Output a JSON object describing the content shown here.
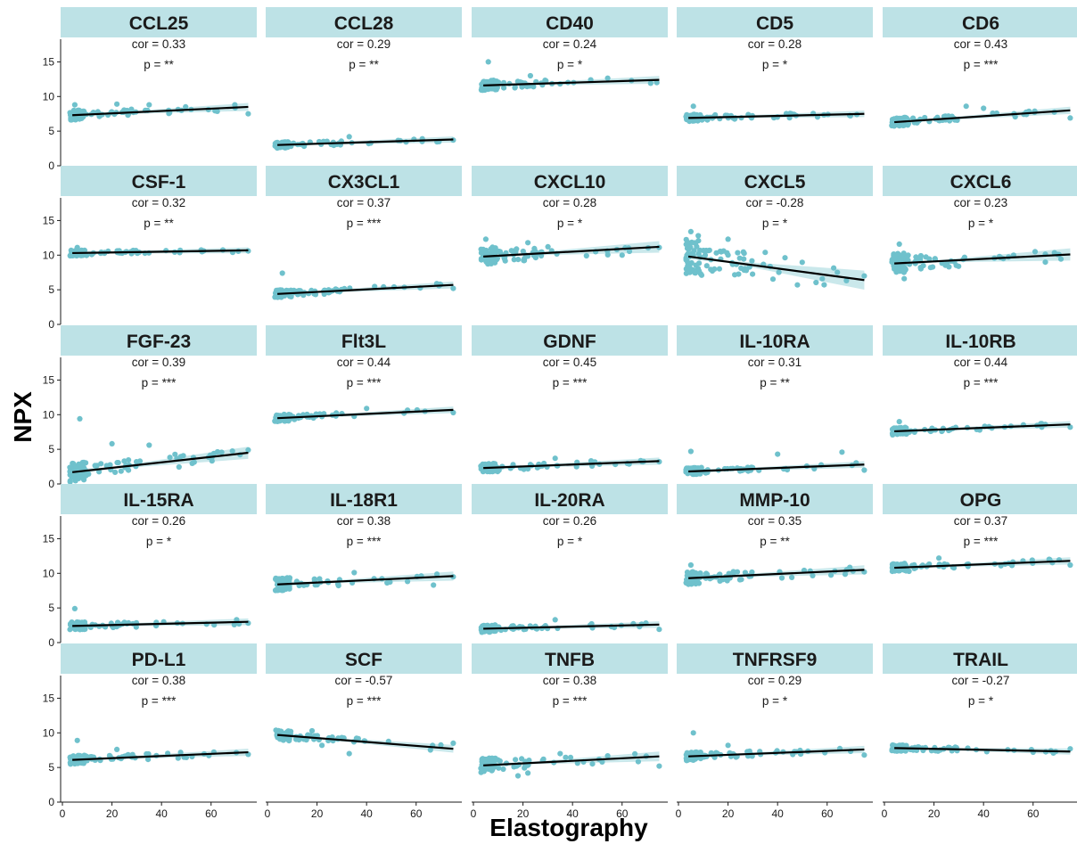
{
  "chart_data": {
    "type": "scatter",
    "xlabel": "Elastography",
    "ylabel": "NPX",
    "xlim": [
      0,
      77
    ],
    "ylim": [
      0,
      17.5
    ],
    "xticks": [
      0,
      20,
      40,
      60
    ],
    "yticks": [
      0,
      5,
      10,
      15
    ],
    "colors": {
      "strip": "#bde2e6",
      "point": "#6fc1cc",
      "band": "#bde2e6",
      "line": "#000000"
    },
    "panels": [
      {
        "name": "CCL25",
        "cor": "cor = 0.33",
        "p": "p = **",
        "line": [
          7.3,
          8.5
        ],
        "base": 7.4,
        "spread": 0.7,
        "outliers": [
          [
            5,
            8.8
          ],
          [
            22,
            8.9
          ],
          [
            35,
            8.8
          ],
          [
            75,
            7.5
          ]
        ]
      },
      {
        "name": "CCL28",
        "cor": "cor = 0.29",
        "p": "p = **",
        "line": [
          3.0,
          3.8
        ],
        "base": 3.1,
        "spread": 0.45,
        "outliers": [
          [
            33,
            4.2
          ],
          [
            75,
            3.7
          ]
        ]
      },
      {
        "name": "CD40",
        "cor": "cor = 0.24",
        "p": "p = *",
        "line": [
          11.6,
          12.4
        ],
        "base": 11.8,
        "spread": 0.7,
        "outliers": [
          [
            6,
            15.0
          ],
          [
            23,
            13.0
          ],
          [
            74,
            12.0
          ]
        ]
      },
      {
        "name": "CD5",
        "cor": "cor = 0.28",
        "p": "p = *",
        "line": [
          6.9,
          7.5
        ],
        "base": 7.0,
        "spread": 0.5,
        "outliers": [
          [
            6,
            8.6
          ],
          [
            72,
            7.4
          ]
        ]
      },
      {
        "name": "CD6",
        "cor": "cor = 0.43",
        "p": "p = ***",
        "line": [
          6.3,
          8.0
        ],
        "base": 6.4,
        "spread": 0.6,
        "outliers": [
          [
            33,
            8.6
          ],
          [
            40,
            8.3
          ],
          [
            75,
            6.9
          ]
        ]
      },
      {
        "name": "CSF-1",
        "cor": "cor = 0.32",
        "p": "p = **",
        "line": [
          10.3,
          10.7
        ],
        "base": 10.4,
        "spread": 0.4,
        "outliers": [
          [
            6,
            11.1
          ],
          [
            75,
            10.6
          ]
        ]
      },
      {
        "name": "CX3CL1",
        "cor": "cor = 0.37",
        "p": "p = ***",
        "line": [
          4.4,
          5.7
        ],
        "base": 4.4,
        "spread": 0.55,
        "outliers": [
          [
            6,
            7.4
          ],
          [
            75,
            5.2
          ]
        ]
      },
      {
        "name": "CXCL10",
        "cor": "cor = 0.28",
        "p": "p = *",
        "line": [
          9.8,
          11.2
        ],
        "base": 10.0,
        "spread": 1.3,
        "outliers": [
          [
            5,
            12.3
          ],
          [
            22,
            11.8
          ],
          [
            60,
            10.0
          ],
          [
            75,
            11.1
          ]
        ]
      },
      {
        "name": "CXCL5",
        "cor": "cor = -0.28",
        "p": "p = *",
        "line": [
          9.8,
          6.4
        ],
        "base": 9.5,
        "spread": 2.5,
        "outliers": [
          [
            5,
            13.4
          ],
          [
            8,
            12.8
          ],
          [
            20,
            12.3
          ],
          [
            35,
            10.4
          ],
          [
            48,
            5.7
          ],
          [
            75,
            7.0
          ]
        ]
      },
      {
        "name": "CXCL6",
        "cor": "cor = 0.23",
        "p": "p = *",
        "line": [
          8.8,
          10.1
        ],
        "base": 9.2,
        "spread": 1.4,
        "outliers": [
          [
            6,
            11.6
          ],
          [
            8,
            6.6
          ],
          [
            48,
            9.5
          ],
          [
            70,
            10.1
          ]
        ]
      },
      {
        "name": "FGF-23",
        "cor": "cor = 0.39",
        "p": "p = ***",
        "line": [
          1.7,
          4.5
        ],
        "base": 2.0,
        "spread": 1.4,
        "outliers": [
          [
            7,
            9.4
          ],
          [
            20,
            5.8
          ],
          [
            35,
            5.6
          ],
          [
            75,
            4.9
          ]
        ]
      },
      {
        "name": "Flt3L",
        "cor": "cor = 0.44",
        "p": "p = ***",
        "line": [
          9.5,
          10.7
        ],
        "base": 9.6,
        "spread": 0.5,
        "outliers": [
          [
            40,
            10.9
          ],
          [
            75,
            10.3
          ]
        ]
      },
      {
        "name": "GDNF",
        "cor": "cor = 0.45",
        "p": "p = ***",
        "line": [
          2.3,
          3.3
        ],
        "base": 2.4,
        "spread": 0.6,
        "outliers": [
          [
            33,
            3.7
          ],
          [
            75,
            3.2
          ]
        ]
      },
      {
        "name": "IL-10RA",
        "cor": "cor = 0.31",
        "p": "p = **",
        "line": [
          1.8,
          2.8
        ],
        "base": 1.9,
        "spread": 0.5,
        "outliers": [
          [
            5,
            4.7
          ],
          [
            40,
            4.3
          ],
          [
            66,
            4.6
          ],
          [
            75,
            2.0
          ]
        ]
      },
      {
        "name": "IL-10RB",
        "cor": "cor = 0.44",
        "p": "p = ***",
        "line": [
          7.6,
          8.6
        ],
        "base": 7.7,
        "spread": 0.5,
        "outliers": [
          [
            6,
            9.0
          ],
          [
            75,
            8.2
          ]
        ]
      },
      {
        "name": "IL-15RA",
        "cor": "cor = 0.26",
        "p": "p = *",
        "line": [
          2.4,
          3.0
        ],
        "base": 2.5,
        "spread": 0.55,
        "outliers": [
          [
            5,
            4.9
          ],
          [
            75,
            2.8
          ]
        ]
      },
      {
        "name": "IL-18R1",
        "cor": "cor = 0.38",
        "p": "p = ***",
        "line": [
          8.4,
          9.6
        ],
        "base": 8.6,
        "spread": 0.9,
        "outliers": [
          [
            35,
            10.1
          ],
          [
            67,
            8.3
          ],
          [
            75,
            9.5
          ]
        ]
      },
      {
        "name": "IL-20RA",
        "cor": "cor = 0.26",
        "p": "p = *",
        "line": [
          2.0,
          2.6
        ],
        "base": 2.1,
        "spread": 0.5,
        "outliers": [
          [
            33,
            3.3
          ],
          [
            75,
            1.9
          ]
        ]
      },
      {
        "name": "MMP-10",
        "cor": "cor = 0.35",
        "p": "p = **",
        "line": [
          9.3,
          10.5
        ],
        "base": 9.4,
        "spread": 0.9,
        "outliers": [
          [
            5,
            11.2
          ],
          [
            75,
            10.2
          ]
        ]
      },
      {
        "name": "OPG",
        "cor": "cor = 0.37",
        "p": "p = ***",
        "line": [
          10.8,
          11.8
        ],
        "base": 10.9,
        "spread": 0.6,
        "outliers": [
          [
            22,
            12.2
          ],
          [
            75,
            11.2
          ]
        ]
      },
      {
        "name": "PD-L1",
        "cor": "cor = 0.38",
        "p": "p = ***",
        "line": [
          6.1,
          7.2
        ],
        "base": 6.2,
        "spread": 0.6,
        "outliers": [
          [
            6,
            8.9
          ],
          [
            22,
            7.6
          ],
          [
            75,
            6.9
          ]
        ]
      },
      {
        "name": "SCF",
        "cor": "cor = -0.57",
        "p": "p = ***",
        "line": [
          9.7,
          7.7
        ],
        "base": 9.6,
        "spread": 0.7,
        "outliers": [
          [
            18,
            10.3
          ],
          [
            22,
            8.2
          ],
          [
            33,
            7.0
          ],
          [
            75,
            8.5
          ]
        ]
      },
      {
        "name": "TNFB",
        "cor": "cor = 0.38",
        "p": "p = ***",
        "line": [
          5.3,
          6.6
        ],
        "base": 5.4,
        "spread": 1.0,
        "outliers": [
          [
            18,
            3.8
          ],
          [
            22,
            4.2
          ],
          [
            35,
            7.0
          ],
          [
            75,
            5.2
          ]
        ]
      },
      {
        "name": "TNFRSF9",
        "cor": "cor = 0.29",
        "p": "p = *",
        "line": [
          6.6,
          7.6
        ],
        "base": 6.8,
        "spread": 0.6,
        "outliers": [
          [
            6,
            10.0
          ],
          [
            20,
            8.2
          ],
          [
            75,
            6.8
          ]
        ]
      },
      {
        "name": "TRAIL",
        "cor": "cor = -0.27",
        "p": "p = *",
        "line": [
          7.8,
          7.3
        ],
        "base": 7.7,
        "spread": 0.45,
        "outliers": [
          [
            6,
            8.2
          ],
          [
            60,
            7.2
          ],
          [
            75,
            7.7
          ]
        ]
      }
    ]
  }
}
